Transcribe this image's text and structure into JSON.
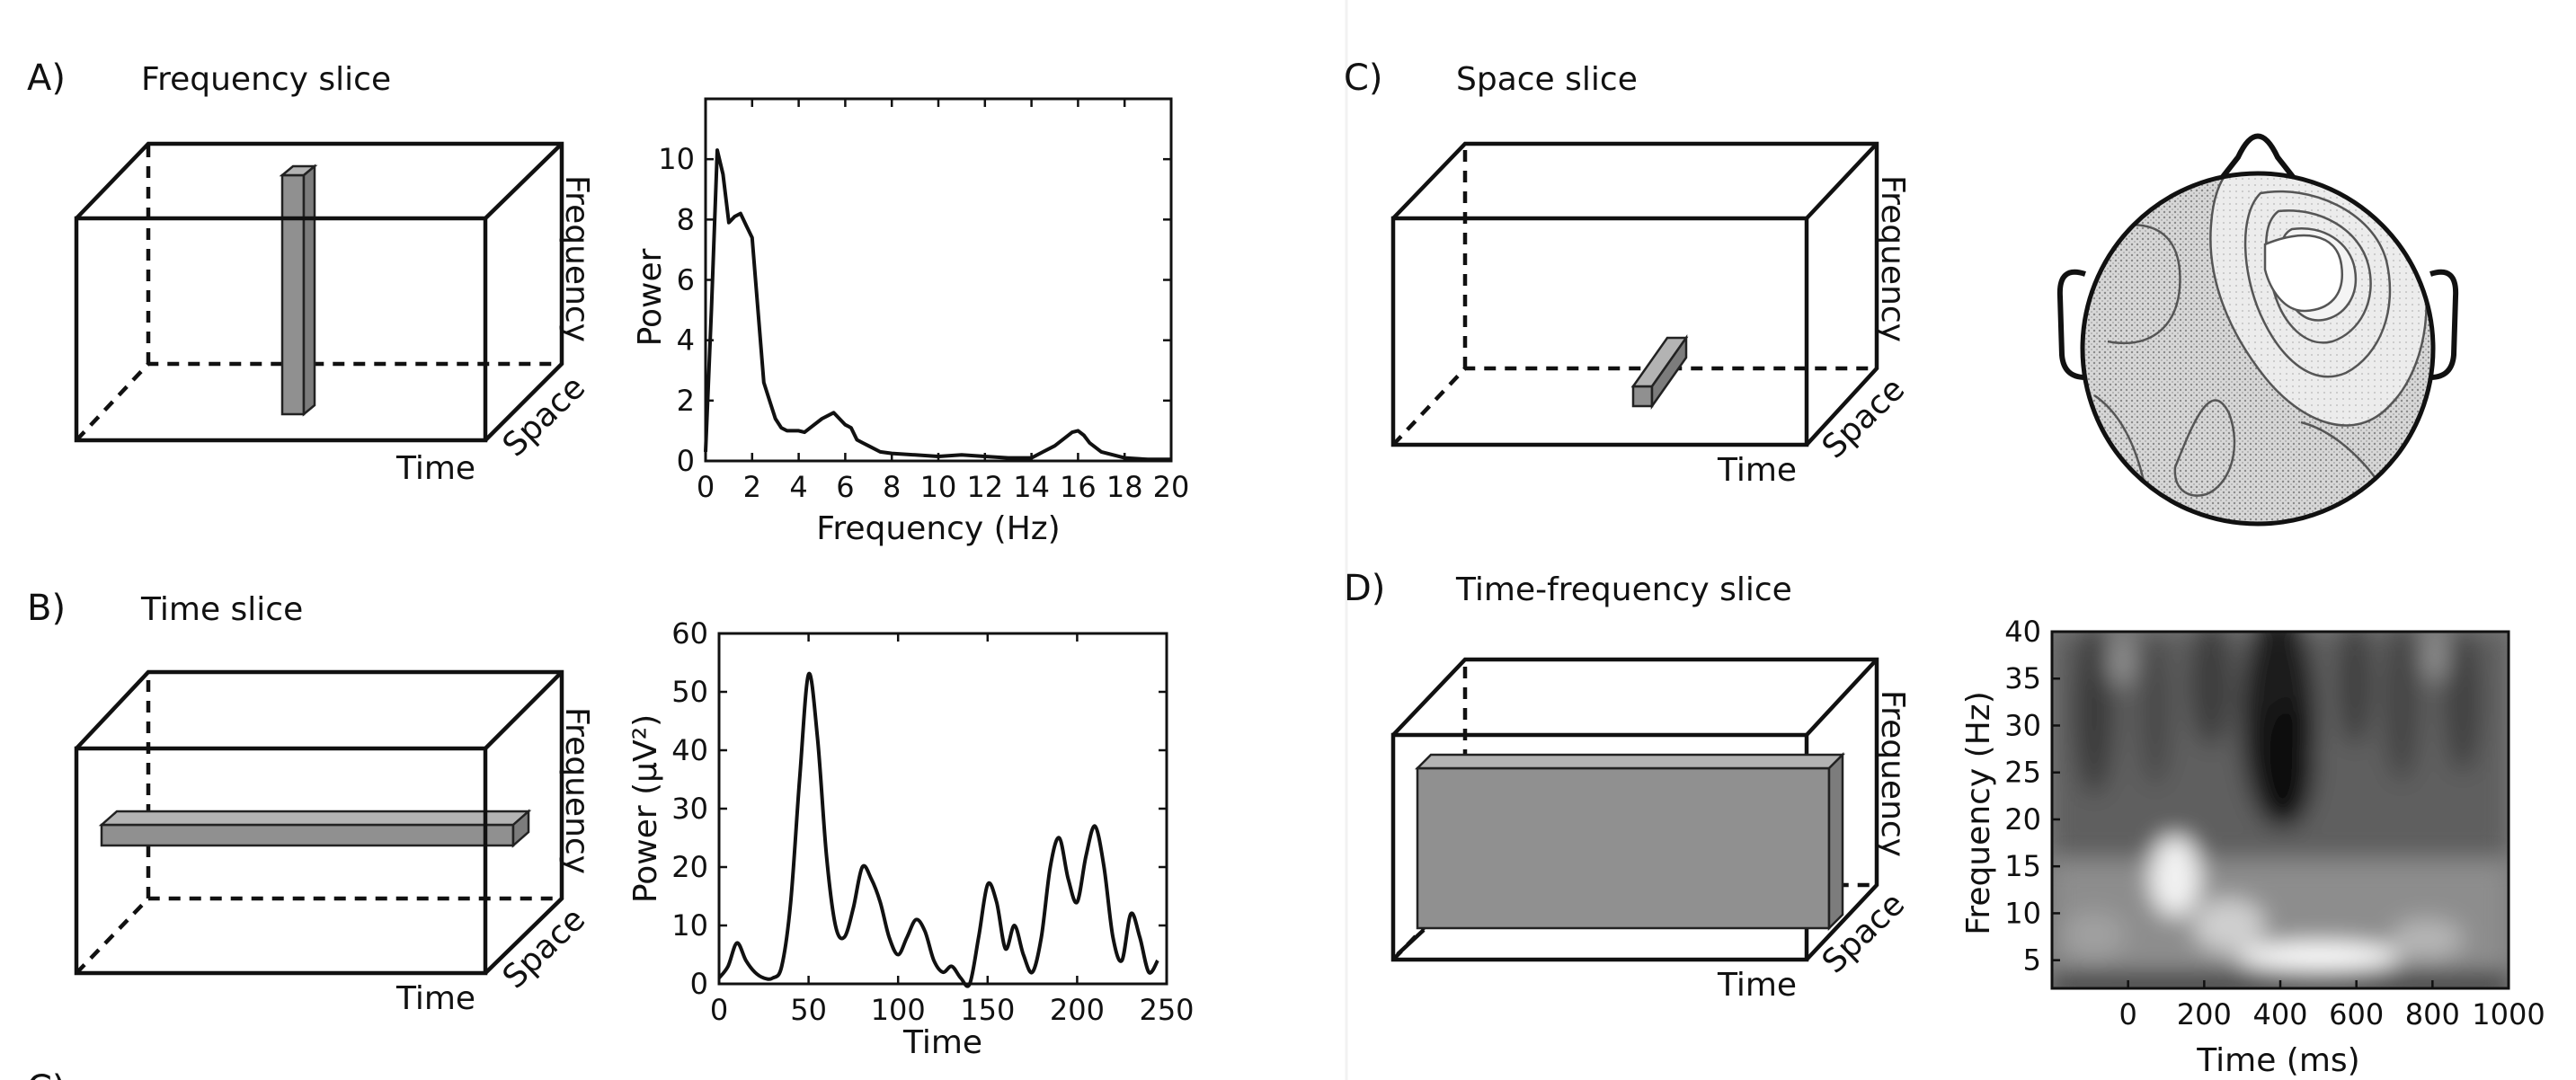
{
  "panels": {
    "a": {
      "letter": "A)",
      "title": "Frequency slice"
    },
    "b": {
      "letter": "B)",
      "title": "Time slice"
    },
    "c": {
      "letter": "C)",
      "title": "Space slice"
    },
    "d": {
      "letter": "D)",
      "title": "Time-frequency slice"
    },
    "e": {
      "letter": "C)"
    }
  },
  "cube_axes": {
    "time": "Time",
    "space": "Space",
    "frequency": "Frequency"
  },
  "colors": {
    "ink": "#111111",
    "bar_fill": "#909090",
    "bar_top": "#b3b3b3",
    "bar_side": "#7c7c7c"
  },
  "chart_data": [
    {
      "type": "line",
      "panel": "A",
      "title": "",
      "xlabel": "Frequency (Hz)",
      "ylabel": "Power",
      "xlim": [
        0,
        20
      ],
      "ylim": [
        0,
        12
      ],
      "xticks": [
        0,
        2,
        4,
        6,
        8,
        10,
        12,
        14,
        16,
        18,
        20
      ],
      "yticks": [
        0,
        2,
        4,
        6,
        8,
        10
      ],
      "x": [
        0,
        0.25,
        0.5,
        0.75,
        1,
        1.25,
        1.5,
        1.75,
        2,
        2.25,
        2.5,
        2.75,
        3,
        3.25,
        3.5,
        4,
        4.25,
        4.5,
        5,
        5.5,
        6,
        6.25,
        6.5,
        6.75,
        7,
        7.5,
        8,
        9,
        10,
        11,
        12,
        13,
        14,
        14.5,
        15,
        15.5,
        15.75,
        16,
        16.25,
        16.5,
        17,
        18,
        19,
        20
      ],
      "y": [
        0.3,
        5,
        10.3,
        9.5,
        7.9,
        8.1,
        8.2,
        7.8,
        7.4,
        5,
        2.6,
        2,
        1.4,
        1.1,
        1.0,
        1.0,
        0.95,
        1.1,
        1.4,
        1.6,
        1.2,
        1.1,
        0.7,
        0.6,
        0.5,
        0.3,
        0.25,
        0.2,
        0.15,
        0.2,
        0.15,
        0.1,
        0.1,
        0.3,
        0.5,
        0.8,
        0.95,
        1.0,
        0.85,
        0.6,
        0.3,
        0.1,
        0.05,
        0.05
      ]
    },
    {
      "type": "line",
      "panel": "B",
      "title": "",
      "xlabel": "Time",
      "ylabel": "Power (μV²)",
      "xlim": [
        0,
        250
      ],
      "ylim": [
        0,
        60
      ],
      "xticks": [
        0,
        50,
        100,
        150,
        200,
        250
      ],
      "yticks": [
        0,
        10,
        20,
        30,
        40,
        50,
        60
      ],
      "x": [
        0,
        5,
        10,
        15,
        20,
        25,
        30,
        35,
        40,
        45,
        50,
        55,
        60,
        65,
        70,
        75,
        80,
        85,
        90,
        95,
        100,
        105,
        110,
        115,
        120,
        125,
        130,
        135,
        140,
        145,
        150,
        155,
        160,
        165,
        170,
        175,
        180,
        185,
        190,
        195,
        200,
        205,
        210,
        215,
        220,
        225,
        230,
        235,
        240,
        245
      ],
      "y": [
        1,
        3,
        7,
        4,
        2,
        1,
        1,
        3,
        14,
        35,
        53,
        42,
        22,
        10,
        8,
        13,
        20,
        18,
        14,
        8,
        5,
        8,
        11,
        9,
        4,
        2,
        3,
        1,
        0,
        8,
        17,
        14,
        6,
        10,
        5,
        2,
        8,
        20,
        25,
        18,
        14,
        22,
        27,
        20,
        8,
        4,
        12,
        8,
        2,
        4
      ]
    },
    {
      "type": "heatmap",
      "panel": "D",
      "title": "",
      "xlabel": "Time (ms)",
      "ylabel": "Frequency (Hz)",
      "xlim": [
        -200,
        1000
      ],
      "ylim": [
        2,
        40
      ],
      "xticks": [
        0,
        200,
        400,
        600,
        800,
        1000
      ],
      "yticks": [
        5,
        10,
        15,
        20,
        25,
        30,
        35,
        40
      ],
      "colormap": "grayscale"
    }
  ]
}
